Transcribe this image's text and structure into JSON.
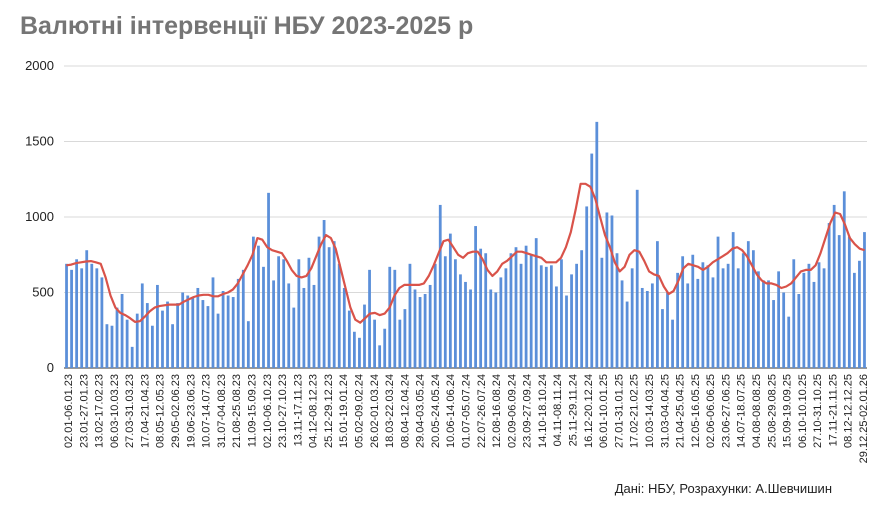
{
  "title": "Валютні інтервенції НБУ 2023-2025 р",
  "source": "Дані: НБУ, Розрахунки: А.Шевчишин",
  "colors": {
    "bar": "#5b8fd9",
    "line": "#d9534a",
    "grid": "#d9d9d9",
    "title": "#757575"
  },
  "chart_data": {
    "type": "bar",
    "title": "Валютні інтервенції НБУ 2023-2025 р",
    "xlabel": "",
    "ylabel": "",
    "ylim": [
      0,
      2000
    ],
    "yticks": [
      0,
      500,
      1000,
      1500,
      2000
    ],
    "grid": true,
    "tick_labels": [
      "02.01-06.01.23",
      "23.01-27.01.23",
      "13.02-17.02.23",
      "06.03-10.03.23",
      "27.03-31.03.23",
      "17.04-21.04.23",
      "08.05-12.05.23",
      "29.05-02.06.23",
      "19.06-23.06.23",
      "10.07-14.07.23",
      "31.07-04.08.23",
      "21.08-25.08.23",
      "11.09-15.09.23",
      "02.10-06.10.23",
      "23.10-27.10.23",
      "13.11-17.11.23",
      "04.12-08.12.23",
      "25.12-29.12.23",
      "15.01-19.01.24",
      "05.02-09.02.24",
      "26.02-01.03.24",
      "18.03-22.03.24",
      "08.04-12.04.24",
      "29.04-03.05.24",
      "20.05-24.05.24",
      "10.06-14.06.24",
      "01.07-05.07.24",
      "22.07-26.07.24",
      "12.08-16.08.24",
      "02.09-06.09.24",
      "23.09-27.09.24",
      "14.10-18.10.24",
      "04.11-08.11.24",
      "25.11-29.11.24",
      "16.12-20.12.24",
      "06.01-10.01.25",
      "27.01-31.01.25",
      "17.02-21.02.25",
      "10.03-14.03.25",
      "31.03-04.04.25",
      "21.04-25.04.25",
      "12.05-16.05.25",
      "02.06-06.06.25",
      "23.06-27.06.25",
      "14.07-18.07.25",
      "04.08-08.08.25",
      "25.08-29.08.25",
      "15.09-19.09.25",
      "06.10-10.10.25",
      "27.10-31.10.25",
      "17.11-21.11.25",
      "08.12-12.12.25",
      "29.12.25-02.01.26"
    ],
    "series": [
      {
        "type": "bar",
        "values": [
          690,
          650,
          720,
          660,
          780,
          690,
          660,
          600,
          290,
          280,
          400,
          490,
          320,
          140,
          360,
          560,
          430,
          280,
          550,
          380,
          440,
          290,
          430,
          500,
          480,
          470,
          530,
          450,
          410,
          600,
          360,
          510,
          480,
          470,
          590,
          650,
          310,
          870,
          810,
          670,
          1160,
          580,
          740,
          720,
          560,
          400,
          720,
          530,
          730,
          550,
          870,
          980,
          800,
          840,
          690,
          530,
          380,
          240,
          200,
          420,
          650,
          320,
          150,
          260,
          670,
          650,
          320,
          390,
          690,
          520,
          470,
          490,
          550,
          690,
          1080,
          740,
          890,
          720,
          620,
          570,
          520,
          940,
          790,
          760,
          520,
          500,
          600,
          660,
          760,
          800,
          690,
          810,
          750,
          860,
          680,
          670,
          680,
          540,
          720,
          480,
          620,
          690,
          780,
          1070,
          1420,
          1630,
          730,
          1030,
          1010,
          760,
          580,
          440,
          660,
          1180,
          530,
          510,
          560,
          840,
          390,
          500,
          320,
          630,
          740,
          560,
          750,
          590,
          700,
          680,
          600,
          870,
          660,
          690,
          900,
          660,
          760,
          840,
          780,
          640,
          580,
          580,
          450,
          640,
          500,
          340,
          720,
          490,
          630,
          690,
          570,
          700,
          660,
          960,
          1080,
          880,
          1170,
          870,
          630,
          710,
          900
        ]
      },
      {
        "type": "line",
        "values": [
          680,
          685,
          695,
          700,
          705,
          708,
          700,
          690,
          600,
          480,
          400,
          365,
          350,
          330,
          305,
          310,
          340,
          375,
          400,
          410,
          415,
          420,
          420,
          420,
          440,
          455,
          470,
          480,
          485,
          485,
          475,
          475,
          490,
          500,
          520,
          560,
          620,
          680,
          750,
          860,
          850,
          800,
          780,
          770,
          760,
          710,
          650,
          610,
          600,
          610,
          660,
          740,
          820,
          880,
          860,
          790,
          660,
          530,
          400,
          320,
          300,
          330,
          360,
          365,
          350,
          360,
          400,
          480,
          530,
          550,
          550,
          550,
          550,
          560,
          610,
          680,
          760,
          840,
          850,
          800,
          750,
          730,
          760,
          770,
          770,
          720,
          650,
          610,
          640,
          690,
          710,
          740,
          770,
          770,
          760,
          750,
          740,
          730,
          700,
          700,
          700,
          730,
          800,
          900,
          1050,
          1220,
          1220,
          1200,
          1120,
          1000,
          880,
          800,
          700,
          640,
          670,
          750,
          780,
          770,
          710,
          640,
          620,
          610,
          540,
          490,
          510,
          580,
          660,
          690,
          680,
          670,
          650,
          670,
          700,
          720,
          740,
          760,
          790,
          800,
          780,
          740,
          680,
          620,
          580,
          560,
          560,
          550,
          530,
          540,
          560,
          600,
          640,
          650,
          650,
          680,
          760,
          860,
          960,
          1030,
          1020,
          950,
          860,
          820,
          790,
          780
        ]
      }
    ]
  }
}
